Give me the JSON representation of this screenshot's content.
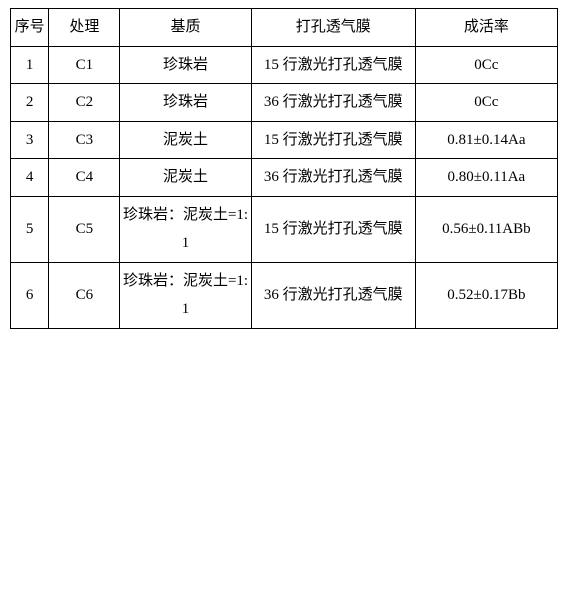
{
  "table": {
    "columns": {
      "seq": "序号",
      "proc": "处理",
      "substrate": "基质",
      "membrane": "打孔透气膜",
      "survival": "成活率"
    },
    "rows": [
      {
        "seq": "1",
        "proc": "C1",
        "substrate": "珍珠岩",
        "membrane": "15 行激光打孔透气膜",
        "survival": "0Cc"
      },
      {
        "seq": "2",
        "proc": "C2",
        "substrate": "珍珠岩",
        "membrane": "36 行激光打孔透气膜",
        "survival": "0Cc"
      },
      {
        "seq": "3",
        "proc": "C3",
        "substrate": "泥炭土",
        "membrane": "15 行激光打孔透气膜",
        "survival": "0.81±0.14Aa"
      },
      {
        "seq": "4",
        "proc": "C4",
        "substrate": "泥炭土",
        "membrane": "36 行激光打孔透气膜",
        "survival": "0.80±0.11Aa"
      },
      {
        "seq": "5",
        "proc": "C5",
        "substrate": "珍珠岩：泥炭土=1:1",
        "membrane": "15 行激光打孔透气膜",
        "survival": "0.56±0.11ABb"
      },
      {
        "seq": "6",
        "proc": "C6",
        "substrate": "珍珠岩：泥炭土=1:1",
        "membrane": "36 行激光打孔透气膜",
        "survival": "0.52±0.17Bb"
      }
    ]
  }
}
